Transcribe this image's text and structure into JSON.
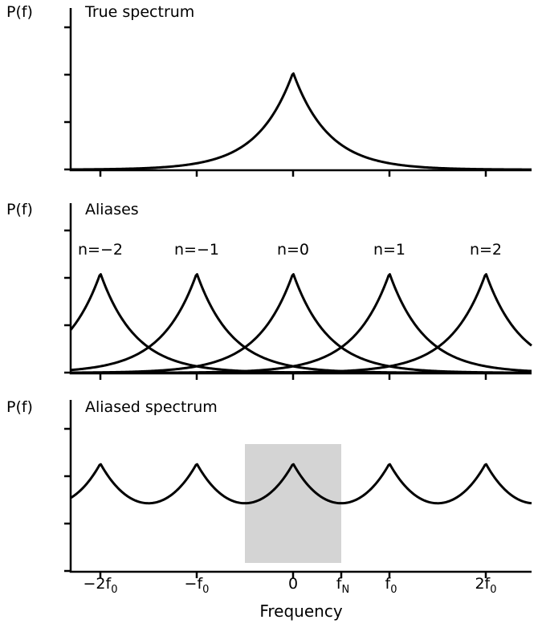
{
  "chart_data": {
    "type": "line",
    "xlabel": "Frequency",
    "x_unit": "multiples of f0",
    "x_range_f0": [
      -2.31,
      2.48
    ],
    "colors": {
      "line": "#000000",
      "nyquist_band": "#d4d4d4",
      "background": "#ffffff"
    },
    "panels": [
      {
        "id": "true-spectrum",
        "title": "True spectrum",
        "ylabel": "P(f)",
        "y_scale": "arbitrary units, unlabeled ticks",
        "y_tick_count": 4,
        "x_ticks_f0": [
          -2,
          -1,
          0,
          1,
          2
        ],
        "series": [
          {
            "name": "true spectrum",
            "profile": "P(f) = A·exp(−|f|/w)",
            "center_f0": 0,
            "width_f0": 0.3667,
            "amplitude": 1.0
          }
        ]
      },
      {
        "id": "aliases",
        "title": "Aliases",
        "ylabel": "P(f)",
        "y_scale": "arbitrary units, unlabeled ticks",
        "y_tick_count": 4,
        "x_ticks_f0": [
          -2,
          -1,
          0,
          1,
          2
        ],
        "alias_labels": [
          {
            "text": "n=−2",
            "center_f0": -2
          },
          {
            "text": "n=−1",
            "center_f0": -1
          },
          {
            "text": "n=0",
            "center_f0": 0
          },
          {
            "text": "n=1",
            "center_f0": 1
          },
          {
            "text": "n=2",
            "center_f0": 2
          }
        ],
        "series": [
          {
            "name": "alias n=−2",
            "profile": "P(f) = A·exp(−|f−n·f0|/w)",
            "center_f0": -2,
            "width_f0": 0.3667,
            "amplitude": 1.0
          },
          {
            "name": "alias n=−1",
            "profile": "P(f) = A·exp(−|f−n·f0|/w)",
            "center_f0": -1,
            "width_f0": 0.3667,
            "amplitude": 1.0
          },
          {
            "name": "alias n=0",
            "profile": "P(f) = A·exp(−|f−n·f0|/w)",
            "center_f0": 0,
            "width_f0": 0.3667,
            "amplitude": 1.0
          },
          {
            "name": "alias n=1",
            "profile": "P(f) = A·exp(−|f−n·f0|/w)",
            "center_f0": 1,
            "width_f0": 0.3667,
            "amplitude": 1.0
          },
          {
            "name": "alias n=2",
            "profile": "P(f) = A·exp(−|f−n·f0|/w)",
            "center_f0": 2,
            "width_f0": 0.3667,
            "amplitude": 1.0
          }
        ]
      },
      {
        "id": "aliased-spectrum",
        "title": "Aliased spectrum",
        "ylabel": "P(f)",
        "y_scale": "arbitrary units, unlabeled ticks",
        "y_tick_count": 4,
        "x_ticks_f0": [
          -2,
          -1,
          0,
          0.5,
          1,
          2
        ],
        "nyquist_band_f0": [
          -0.5,
          0.5
        ],
        "series": [
          {
            "name": "aliased spectrum",
            "profile": "sum over n of exp(−|f−n·f0|/w)",
            "center_f0": 0,
            "width_f0": 0.4833,
            "amplitude": 1.0
          }
        ],
        "x_tick_labels": [
          {
            "pos_f0": -2,
            "main": "−2f",
            "sub": "0"
          },
          {
            "pos_f0": -1,
            "main": "−f",
            "sub": "0"
          },
          {
            "pos_f0": 0,
            "main": "0",
            "sub": ""
          },
          {
            "pos_f0": 0.5,
            "main": "f",
            "sub": "N"
          },
          {
            "pos_f0": 1,
            "main": "f",
            "sub": "0"
          },
          {
            "pos_f0": 2,
            "main": "2f",
            "sub": "0"
          }
        ]
      }
    ]
  }
}
